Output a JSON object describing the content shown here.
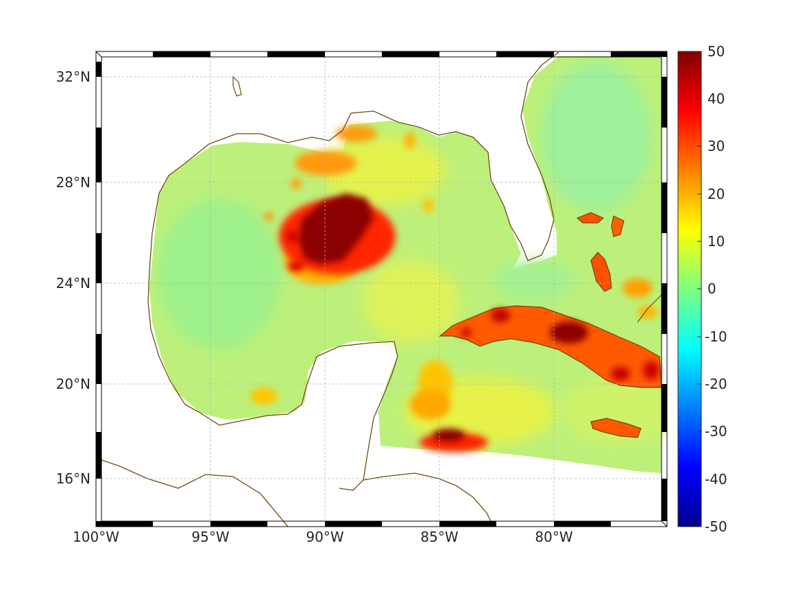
{
  "map": {
    "lat_ticks": [
      "32°N",
      "28°N",
      "24°N",
      "20°N",
      "16°N"
    ],
    "lon_ticks": [
      "100°W",
      "95°W",
      "90°W",
      "85°W",
      "80°W"
    ],
    "lon_range": [
      -100,
      -75.2
    ],
    "lat_range": [
      14.2,
      33
    ],
    "grid": true
  },
  "colorbar": {
    "colormap": "jet",
    "range": [
      -50,
      50
    ],
    "ticks": [
      "50",
      "40",
      "30",
      "20",
      "10",
      "0",
      "-10",
      "-20",
      "-30",
      "-40",
      "-50"
    ]
  },
  "colors": {
    "coastline": "#6b4a10",
    "background_field": "#b8f07a",
    "hotspot": "#8b0000"
  },
  "chart_data": {
    "type": "heatmap",
    "title": "",
    "xlabel": "",
    "ylabel": "",
    "xlim": [
      -100,
      -75.2
    ],
    "ylim": [
      14.2,
      33
    ],
    "clim": [
      -50,
      50
    ],
    "features": [
      {
        "lon": -89.5,
        "lat": 26.2,
        "value": 50
      },
      {
        "lon": -90.5,
        "lat": 29.5,
        "value": 25
      },
      {
        "lon": -84.5,
        "lat": 17.8,
        "value": 45
      },
      {
        "lon": -79.5,
        "lat": 22.0,
        "value": 40
      },
      {
        "lon": -77.5,
        "lat": 18.0,
        "value": 35
      },
      {
        "lon": -78.0,
        "lat": 24.5,
        "value": 35
      },
      {
        "lon": -84.8,
        "lat": 19.5,
        "value": 15
      },
      {
        "lon": -92.5,
        "lat": 19.5,
        "value": 18
      },
      {
        "lon": -96.5,
        "lat": 25.5,
        "value": 3
      },
      {
        "lon": -80.0,
        "lat": 29.0,
        "value": 4
      },
      {
        "lon": -86.0,
        "lat": 24.0,
        "value": 8
      }
    ]
  }
}
